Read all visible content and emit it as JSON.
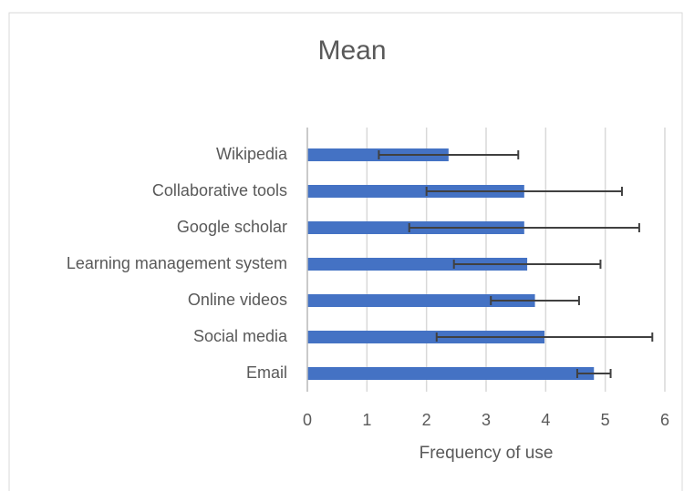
{
  "chart_data": {
    "type": "bar",
    "orientation": "horizontal",
    "title": "Mean",
    "x_label": "Frequency of use",
    "categories": [
      "Wikipedia",
      "Collaborative tools",
      "Google scholar",
      "Learning management system",
      "Online videos",
      "Social media",
      "Email"
    ],
    "values": [
      2.37,
      3.64,
      3.64,
      3.69,
      3.82,
      3.98,
      4.81
    ],
    "errors": [
      1.17,
      1.64,
      1.93,
      1.23,
      0.74,
      1.81,
      0.28
    ],
    "color": "#4472c4",
    "error_color": "#404040",
    "xlim": [
      0,
      6
    ],
    "xticks": [
      0,
      1,
      2,
      3,
      4,
      5,
      6
    ],
    "grid": true
  }
}
